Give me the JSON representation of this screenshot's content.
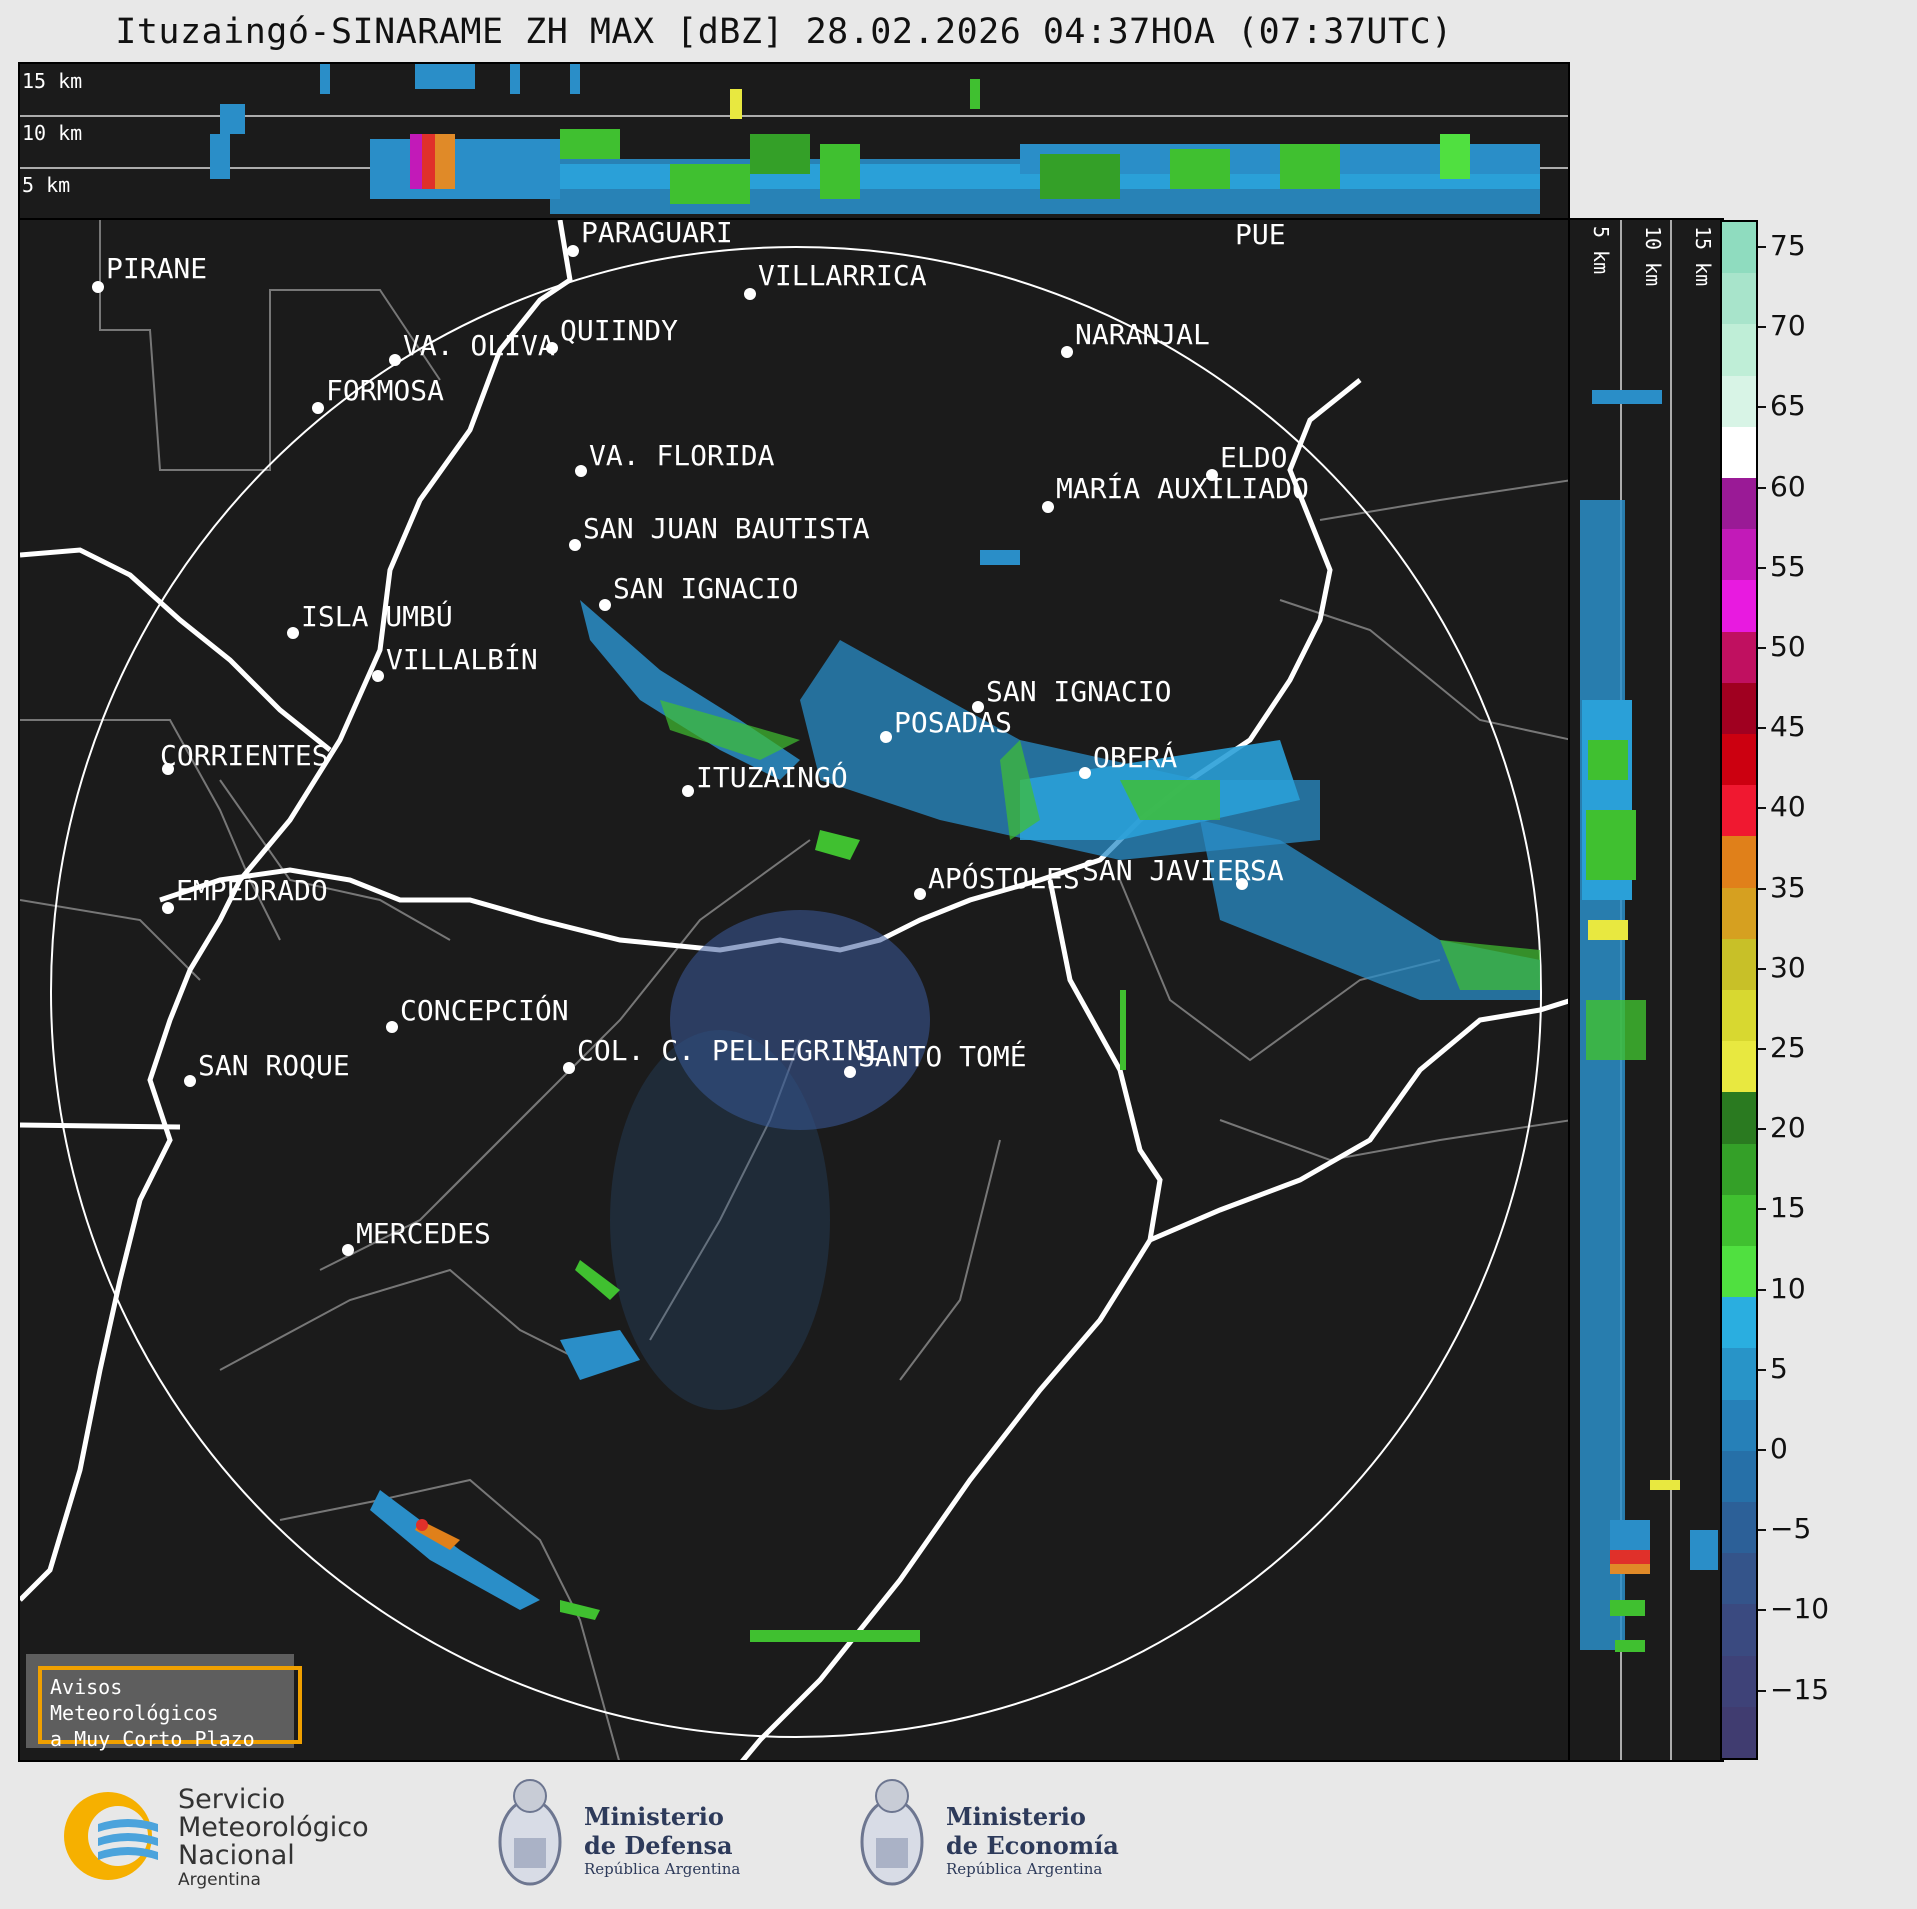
{
  "title": "Ituzaingó-SINARAME ZH MAX [dBZ] 28.02.2026 04:37HOA (07:37UTC)",
  "height_labels_top": [
    "15 km",
    "10 km",
    "5 km"
  ],
  "height_labels_side": [
    "5 km",
    "10 km",
    "15 km"
  ],
  "cities": [
    {
      "label": "PIRANE"
    },
    {
      "label": "PARAGUARÍ"
    },
    {
      "label": "VILLARRICA"
    },
    {
      "label": "QUIINDY"
    },
    {
      "label": "VA. OLIVA"
    },
    {
      "label": "FORMOSA"
    },
    {
      "label": "NARANJAL"
    },
    {
      "label": "PUE"
    },
    {
      "label": "VA. FLORIDA"
    },
    {
      "label": "ELDO"
    },
    {
      "label": "MARÍA AUXILIADO"
    },
    {
      "label": "SAN JUAN BAUTISTA"
    },
    {
      "label": "SAN IGNACIO"
    },
    {
      "label": "ISLA UMBÚ"
    },
    {
      "label": "VILLALBÍN"
    },
    {
      "label": "SAN IGNACIO"
    },
    {
      "label": "POSADAS"
    },
    {
      "label": "CORRIENTES"
    },
    {
      "label": "ITUZAINGÓ"
    },
    {
      "label": "OBERÁ"
    },
    {
      "label": "EMPEDRADO"
    },
    {
      "label": "APÓSTOLES"
    },
    {
      "label": "SAN JAVIER"
    },
    {
      "label": "SA"
    },
    {
      "label": "CONCEPCIÓN"
    },
    {
      "label": "SAN ROQUE"
    },
    {
      "label": "COL. C. PELLEGRINI"
    },
    {
      "label": "SANTO TOMÉ"
    },
    {
      "label": "MERCEDES"
    }
  ],
  "colorbar": {
    "ticks": [
      "75",
      "70",
      "65",
      "60",
      "55",
      "50",
      "45",
      "40",
      "35",
      "30",
      "25",
      "20",
      "15",
      "10",
      "5",
      "0",
      "−5",
      "−10",
      "−15"
    ],
    "colors": [
      "#8fdcbf",
      "#a8e4cb",
      "#bfeed7",
      "#d8f4e6",
      "#ffffff",
      "#9a1a96",
      "#c21ab8",
      "#e81ae0",
      "#c01060",
      "#a00020",
      "#cc0010",
      "#f01830",
      "#e0801a",
      "#d6a020",
      "#c8c028",
      "#d8d830",
      "#e8e840",
      "#2a7a20",
      "#34a028",
      "#40c030",
      "#50e040",
      "#2aaee0",
      "#2894c8",
      "#2680b8",
      "#2670a8",
      "#2c6098",
      "#34548a",
      "#3a4a80",
      "#3e4278",
      "#403c70"
    ]
  },
  "warning_box": {
    "line1": "Avisos Meteorológicos",
    "line2": "a Muy Corto Plazo"
  },
  "logos": {
    "smn": {
      "line1": "Servicio",
      "line2": "Meteorológico",
      "line3": "Nacional",
      "line4": "Argentina"
    },
    "defensa": {
      "line1": "Ministerio",
      "line2": "de Defensa",
      "line3": "República Argentina"
    },
    "economia": {
      "line1": "Ministerio",
      "line2": "de Economía",
      "line3": "República Argentina"
    }
  }
}
